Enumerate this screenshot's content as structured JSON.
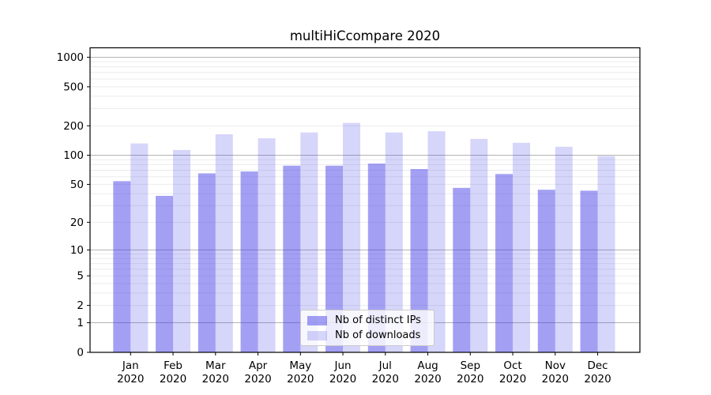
{
  "chart_data": {
    "type": "bar",
    "title": "multiHiCcompare 2020",
    "xlabel": "",
    "ylabel": "",
    "scale": "log1p",
    "grid": true,
    "legend_position": "lower-center",
    "categories": [
      "Jan 2020",
      "Feb 2020",
      "Mar 2020",
      "Apr 2020",
      "May 2020",
      "Jun 2020",
      "Jul 2020",
      "Aug 2020",
      "Sep 2020",
      "Oct 2020",
      "Nov 2020",
      "Dec 2020"
    ],
    "series": [
      {
        "name": "Nb of distinct IPs",
        "values": [
          54,
          38,
          65,
          68,
          78,
          78,
          82,
          72,
          46,
          64,
          44,
          43
        ],
        "color": "rgba(62, 57, 232, 0.48)"
      },
      {
        "name": "Nb of downloads",
        "values": [
          132,
          113,
          164,
          149,
          171,
          214,
          171,
          176,
          147,
          134,
          122,
          98
        ],
        "color": "rgba(62, 57, 232, 0.21)"
      }
    ],
    "y_ticks": [
      0,
      1,
      2,
      5,
      10,
      20,
      50,
      100,
      200,
      500,
      1000
    ],
    "ylim": [
      0,
      1250
    ]
  },
  "colors": {
    "grid_major": "#b3b3b3",
    "grid_minor": "#ebebeb",
    "axis": "#000000"
  }
}
